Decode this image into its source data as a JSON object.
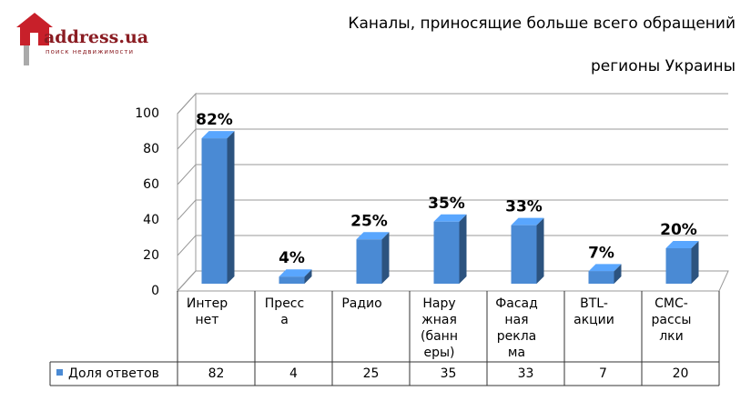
{
  "logo": {
    "text": "address.ua",
    "tagline": "поиск недвижимости"
  },
  "chart_data": {
    "type": "bar3d",
    "title": "Каналы, приносящие больше всего обращений",
    "subtitle": "регионы Украины",
    "categories": [
      [
        "Интер",
        "нет"
      ],
      [
        "Пресс",
        "а"
      ],
      [
        "Радио"
      ],
      [
        "Нару",
        "жная",
        "(банн",
        "еры)"
      ],
      [
        "Фасад",
        "ная",
        "рекла",
        "ма"
      ],
      [
        "BTL-",
        "акции"
      ],
      [
        "СМС-",
        "рассы",
        "лки"
      ]
    ],
    "series": [
      {
        "name": "Доля ответов",
        "color": "#4a8ad4",
        "values": [
          82,
          4,
          25,
          35,
          33,
          7,
          20
        ],
        "value_labels": [
          "82%",
          "4%",
          "25%",
          "35%",
          "33%",
          "7%",
          "20%"
        ]
      }
    ],
    "ylim": [
      0,
      100
    ],
    "yticks": [
      0,
      20,
      40,
      60,
      80,
      100
    ],
    "grid": true,
    "data_table": true
  }
}
